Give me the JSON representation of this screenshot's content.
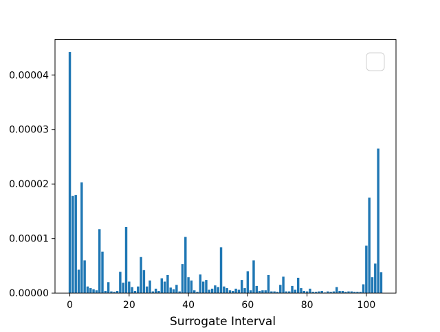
{
  "chart_data": {
    "type": "bar",
    "title": "",
    "xlabel": "Surrogate Interval",
    "ylabel": "",
    "xlim": [
      -5,
      110
    ],
    "ylim": [
      0,
      4.65e-05
    ],
    "xticks": [
      0,
      20,
      40,
      60,
      80,
      100
    ],
    "xtick_labels": [
      "0",
      "20",
      "40",
      "60",
      "80",
      "100"
    ],
    "yticks": [
      0,
      1e-05,
      2e-05,
      3e-05,
      4e-05
    ],
    "ytick_labels": [
      "0.00000",
      "0.00001",
      "0.00002",
      "0.00003",
      "0.00004"
    ],
    "legend": {
      "placement": "top-right",
      "entries": []
    },
    "grid": false,
    "bar_color": "#1f77b4",
    "x": [
      0,
      1,
      2,
      3,
      4,
      5,
      6,
      7,
      8,
      9,
      10,
      11,
      12,
      13,
      14,
      15,
      16,
      17,
      18,
      19,
      20,
      21,
      22,
      23,
      24,
      25,
      26,
      27,
      28,
      29,
      30,
      31,
      32,
      33,
      34,
      35,
      36,
      37,
      38,
      39,
      40,
      41,
      42,
      43,
      44,
      45,
      46,
      47,
      48,
      49,
      50,
      51,
      52,
      53,
      54,
      55,
      56,
      57,
      58,
      59,
      60,
      61,
      62,
      63,
      64,
      65,
      66,
      67,
      68,
      69,
      70,
      71,
      72,
      73,
      74,
      75,
      76,
      77,
      78,
      79,
      80,
      81,
      82,
      83,
      84,
      85,
      86,
      87,
      88,
      89,
      90,
      91,
      92,
      93,
      94,
      95,
      96,
      97,
      98,
      99,
      100,
      101,
      102,
      103,
      104,
      105
    ],
    "values": [
      4.42e-05,
      1.78e-05,
      1.8e-05,
      4.3e-06,
      2.03e-05,
      6e-06,
      1.2e-06,
      9e-07,
      7e-07,
      5e-07,
      1.17e-05,
      7.6e-06,
      4e-07,
      2e-06,
      3e-07,
      2e-07,
      4e-07,
      3.9e-06,
      1.9e-06,
      1.21e-05,
      2.1e-06,
      1.1e-06,
      4e-07,
      1.2e-06,
      6.6e-06,
      4.2e-06,
      1.2e-06,
      2.3e-06,
      3e-07,
      8e-07,
      4e-07,
      2.7e-06,
      2.1e-06,
      3.3e-06,
      1e-06,
      7e-07,
      1.5e-06,
      3e-07,
      5.3e-06,
      1.03e-05,
      2.9e-06,
      2.3e-06,
      5e-07,
      2e-07,
      3.4e-06,
      2.1e-06,
      2.4e-06,
      6e-07,
      8e-07,
      1.4e-06,
      1.1e-06,
      8.4e-06,
      1.2e-06,
      9e-07,
      5e-07,
      4e-07,
      8e-07,
      6e-07,
      2.4e-06,
      9e-07,
      4e-06,
      5e-07,
      6e-06,
      1.3e-06,
      4e-07,
      5e-07,
      5e-07,
      3.3e-06,
      3e-07,
      3e-07,
      2e-07,
      1.5e-06,
      3e-06,
      3e-07,
      3e-07,
      1.3e-06,
      6e-07,
      2.8e-06,
      9e-07,
      4e-07,
      3e-07,
      8e-07,
      2e-07,
      2e-07,
      3e-07,
      4e-07,
      1e-07,
      3e-07,
      2e-07,
      3e-07,
      1.1e-06,
      4e-07,
      4e-07,
      2e-07,
      3e-07,
      3e-07,
      2e-07,
      2e-07,
      2e-07,
      1.6e-06,
      8.7e-06,
      1.75e-05,
      2.9e-06,
      5.4e-06,
      2.65e-05,
      3.8e-06
    ]
  }
}
